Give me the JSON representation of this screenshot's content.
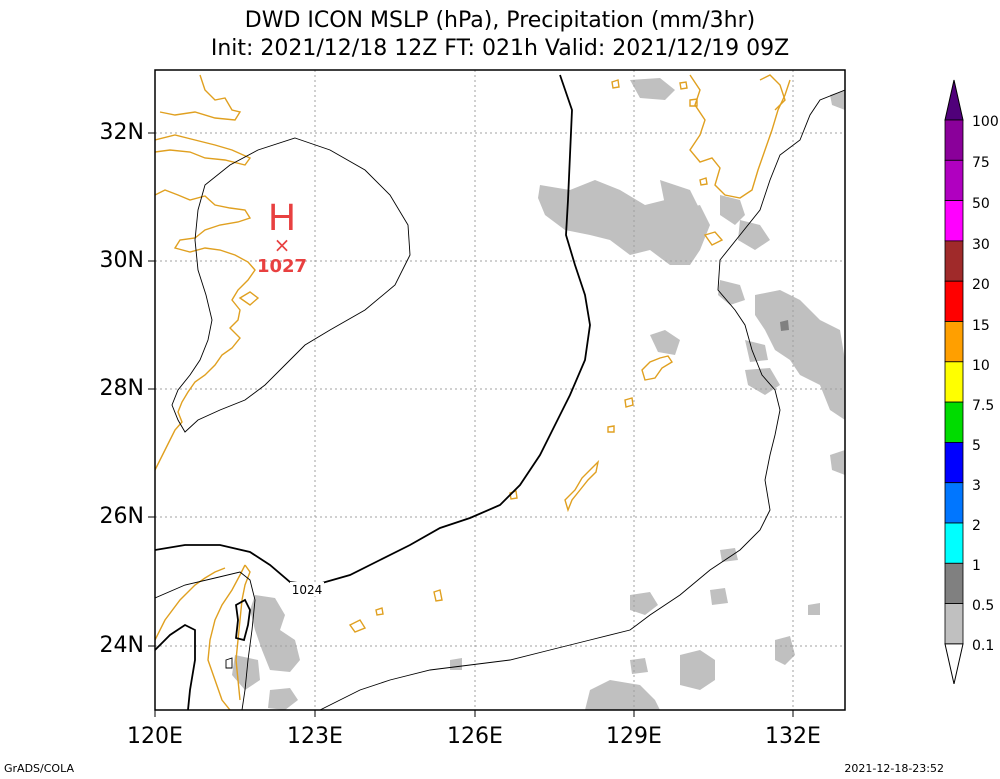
{
  "title": {
    "line1": "DWD ICON MSLP (hPa), Precipitation (mm/3hr)",
    "line2": "Init: 2021/12/18 12Z  FT: 021h  Valid: 2021/12/19 09Z"
  },
  "axes": {
    "lat_labels": [
      "32N",
      "30N",
      "28N",
      "26N",
      "24N"
    ],
    "lon_labels": [
      "120E",
      "123E",
      "126E",
      "129E",
      "132E"
    ],
    "lat_range": [
      23,
      33
    ],
    "lon_range": [
      120,
      133
    ]
  },
  "pressure": {
    "high_symbol": "H",
    "high_marker": "×",
    "high_value": "1027",
    "contour_label": "1024",
    "high_color": "#e84040"
  },
  "colorbar": {
    "levels": [
      "100",
      "75",
      "50",
      "30",
      "20",
      "15",
      "10",
      "7.5",
      "5",
      "3",
      "2",
      "1",
      "0.5",
      "0.1"
    ],
    "colors": [
      "#8a009a",
      "#b000c0",
      "#ff00ff",
      "#a02a2a",
      "#ff0000",
      "#ff9f00",
      "#ffff00",
      "#00dc00",
      "#0000ff",
      "#0076ff",
      "#00ffff",
      "#808080",
      "#c0c0c0"
    ],
    "top_color": "#50007a",
    "bottom_color": "#ffffff"
  },
  "colors": {
    "coastline": "#e0a020",
    "precip_light": "#c0c0c0",
    "precip_mid": "#808080",
    "grid": "#a0a0a0"
  },
  "footer": {
    "left": "GrADS/COLA",
    "right": "2021-12-18-23:52"
  }
}
